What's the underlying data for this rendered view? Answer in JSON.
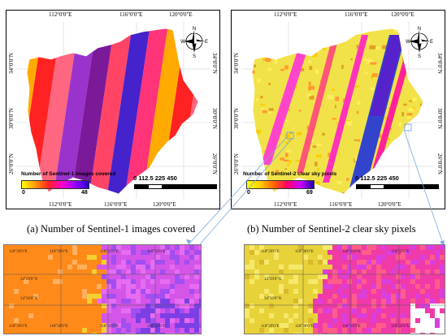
{
  "panel_a": {
    "graticule_top": [
      "112°0'0\"E",
      "116°0'0\"E",
      "120°0'0\"E"
    ],
    "graticule_bottom": [
      "112°0'0\"E",
      "116°0'0\"E",
      "120°0'0\"E"
    ],
    "graticule_left": [
      "34°0'0\"N",
      "30°0'0\"N",
      "26°0'0\"N"
    ],
    "graticule_right": [
      "34°0'0\"N",
      "30°0'0\"N",
      "26°0'0\"N"
    ],
    "legend_title": "Number of Sentinel-1 images covered",
    "legend_min": "0",
    "legend_max": "48",
    "legend_colors": [
      "#ffff00",
      "#ff9900",
      "#ff2222",
      "#ff00cc",
      "#9900ff",
      "#2200cc"
    ],
    "scale_values": "0   112.5 225        450",
    "scale_unit": "Km",
    "caption": "(a) Number of Sentinel-1 images covered",
    "stripe_colors": [
      "#ffaa00",
      "#ff2222",
      "#ff6680",
      "#9933cc",
      "#7a1a99",
      "#ff4466",
      "#4422cc",
      "#ff3377"
    ]
  },
  "panel_b": {
    "graticule_top": [
      "112°0'0\"E",
      "116°0'0\"E",
      "120°0'0\"E"
    ],
    "graticule_bottom": [
      "112°0'0\"E",
      "116°0'0\"E",
      "120°0'0\"E"
    ],
    "graticule_left": [
      "34°0'0\"N",
      "30°0'0\"N",
      "26°0'0\"N"
    ],
    "graticule_right": [
      "34°0'0\"N",
      "30°0'0\"N",
      "26°0'0\"N"
    ],
    "legend_title": "Number of Sentinel-2 clear sky pixels",
    "legend_min": "0",
    "legend_max": "69",
    "legend_colors": [
      "#ffff00",
      "#ffcc00",
      "#ff6600",
      "#ff0066",
      "#cc00ff",
      "#2200aa"
    ],
    "scale_values": "0   112.5 225        450",
    "scale_unit": "Km",
    "caption": "(b) Number of Sentinel-2 clear sky pixels"
  },
  "compass": {
    "n": "N",
    "s": "S",
    "e": "E",
    "w": "W"
  },
  "zoom_a": {
    "labels": [
      "118°29'0\"E",
      "118°30'0\"E",
      "118°31'0\"E",
      "118°32'0\"E",
      "118°29'0\"E",
      "118°30'0\"E",
      "118°31'0\"E",
      "118°32'0\"E",
      "34°29'0\"N",
      "34°30'0\"N"
    ]
  },
  "zoom_b": {
    "labels": [
      "118°29'0\"E",
      "118°30'0\"E",
      "118°31'0\"E",
      "118°32'0\"E",
      "118°29'0\"E",
      "118°30'0\"E",
      "118°31'0\"E",
      "118°32'0\"E",
      "34°29'0\"N",
      "34°30'0\"N"
    ]
  }
}
